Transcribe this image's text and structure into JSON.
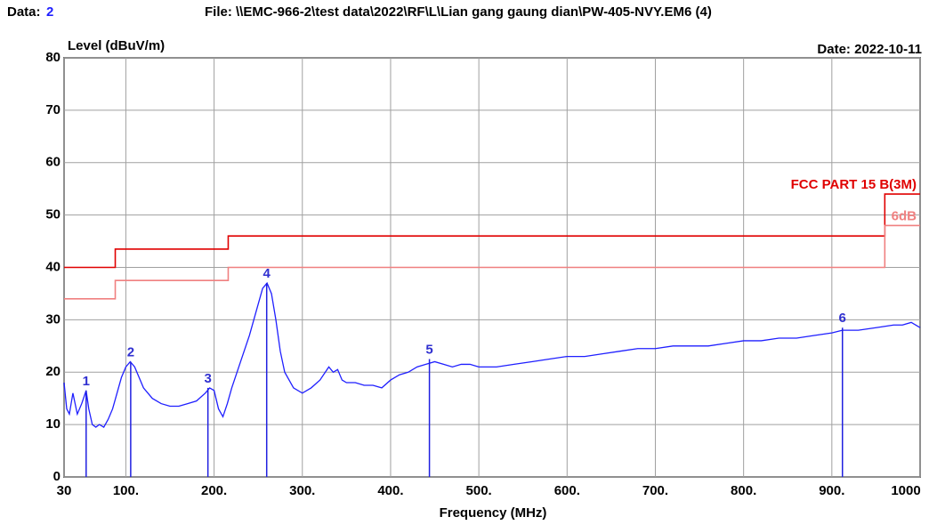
{
  "chart_data": {
    "type": "line",
    "header": {
      "data_label": "Data:",
      "data_value": "2",
      "file": "File: \\\\EMC-966-2\\test data\\2022\\RF\\L\\Lian gang gaung dian\\PW-405-NVY.EM6  (4)",
      "date": "Date: 2022-10-11"
    },
    "ylabel": "Level (dBuV/m)",
    "xlabel": "Frequency (MHz)",
    "xlim": [
      30,
      1000
    ],
    "ylim": [
      0,
      80
    ],
    "xticks": [
      30,
      {
        "value": 100,
        "label": "100."
      },
      {
        "value": 200,
        "label": "200."
      },
      {
        "value": 300,
        "label": "300."
      },
      {
        "value": 400,
        "label": "400."
      },
      {
        "value": 500,
        "label": "500."
      },
      {
        "value": 600,
        "label": "600."
      },
      {
        "value": 700,
        "label": "700."
      },
      {
        "value": 800,
        "label": "800."
      },
      {
        "value": 900,
        "label": "900."
      },
      1000
    ],
    "yticks": [
      0,
      10,
      20,
      30,
      40,
      50,
      60,
      70,
      80
    ],
    "grid": true,
    "series": [
      {
        "color": "#1f1fff",
        "x": [
          30,
          33,
          36,
          40,
          45,
          50,
          55,
          58,
          62,
          66,
          70,
          75,
          80,
          85,
          90,
          95,
          100,
          105,
          110,
          115,
          120,
          125,
          130,
          140,
          150,
          160,
          170,
          180,
          190,
          195,
          200,
          205,
          210,
          215,
          220,
          230,
          240,
          250,
          255,
          260,
          265,
          270,
          275,
          280,
          290,
          300,
          310,
          320,
          330,
          335,
          340,
          345,
          350,
          360,
          370,
          380,
          390,
          400,
          410,
          420,
          430,
          440,
          450,
          460,
          470,
          480,
          490,
          500,
          520,
          540,
          560,
          580,
          600,
          620,
          640,
          660,
          680,
          700,
          720,
          740,
          760,
          780,
          800,
          820,
          840,
          860,
          880,
          900,
          912,
          930,
          950,
          970,
          980,
          990,
          1000
        ],
        "values": [
          18,
          13,
          12,
          16,
          12,
          14,
          16.5,
          13,
          10,
          9.5,
          10,
          9.5,
          11,
          13,
          16,
          19,
          21,
          22,
          21,
          19,
          17,
          16,
          15,
          14,
          13.5,
          13.5,
          14,
          14.5,
          16,
          17,
          16.5,
          13,
          11.5,
          14,
          17,
          22,
          27,
          33,
          36,
          37,
          35,
          30,
          24,
          20,
          17,
          16,
          17,
          18.5,
          21,
          20,
          20.5,
          18.5,
          18,
          18,
          17.5,
          17.5,
          17,
          18.5,
          19.5,
          20,
          21,
          21.5,
          22,
          21.5,
          21,
          21.5,
          21.5,
          21,
          21,
          21.5,
          22,
          22.5,
          23,
          23,
          23.5,
          24,
          24.5,
          24.5,
          25,
          25,
          25,
          25.5,
          26,
          26,
          26.5,
          26.5,
          27,
          27.5,
          28,
          28,
          28.5,
          29,
          29,
          29.5,
          28.5
        ]
      },
      {
        "name": "FCC PART 15 B(3M)",
        "color": "#e00000",
        "x": [
          30,
          88,
          88,
          216,
          216,
          960,
          960,
          1000
        ],
        "values": [
          40,
          40,
          43.5,
          43.5,
          46,
          46,
          54,
          54
        ]
      },
      {
        "name": "6dB",
        "color": "#f08080",
        "x": [
          30,
          88,
          88,
          216,
          216,
          960,
          960,
          1000
        ],
        "values": [
          34,
          34,
          37.5,
          37.5,
          40,
          40,
          48,
          48
        ]
      }
    ],
    "markers": [
      {
        "label": "1",
        "x": 55,
        "y": 16.5
      },
      {
        "label": "2",
        "x": 105.5,
        "y": 22
      },
      {
        "label": "3",
        "x": 193,
        "y": 17
      },
      {
        "label": "4",
        "x": 259.6,
        "y": 37
      },
      {
        "label": "5",
        "x": 444,
        "y": 22.5
      },
      {
        "label": "6",
        "x": 912,
        "y": 28.5
      }
    ]
  }
}
